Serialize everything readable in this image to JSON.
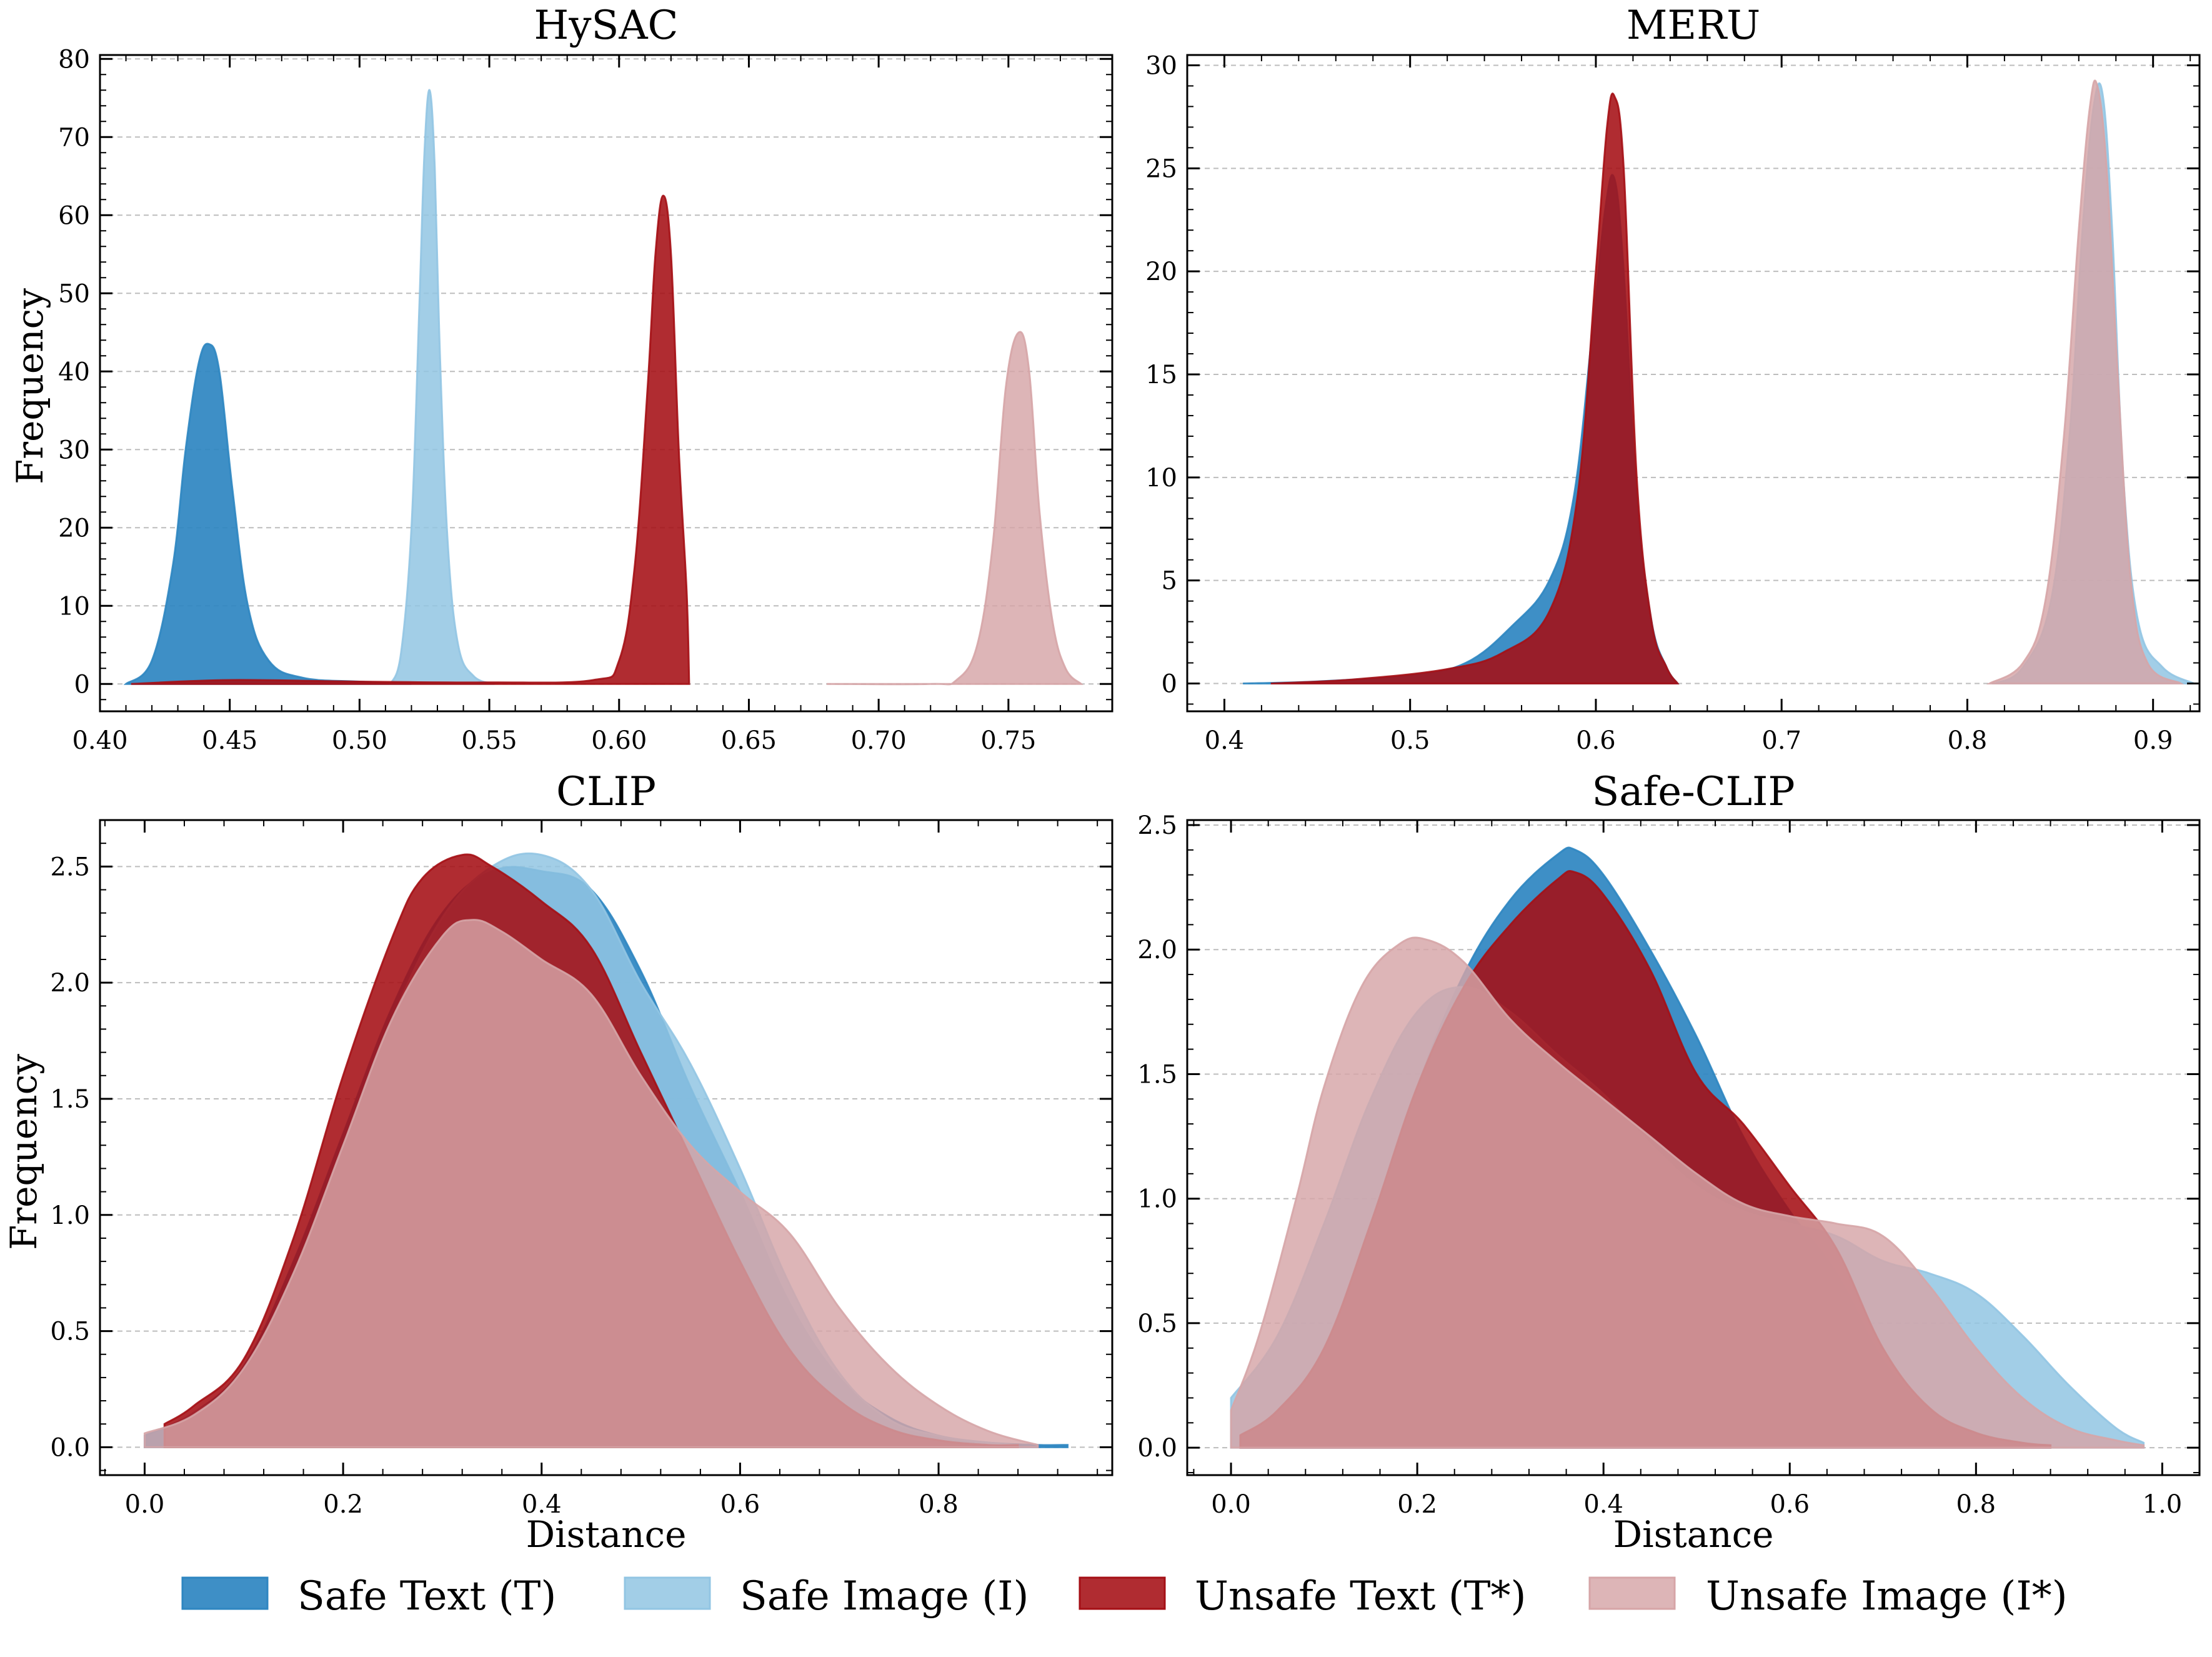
{
  "legend": {
    "position": "bottom-center",
    "items": [
      {
        "label": "Safe Text (T)",
        "color": "#2E86C1"
      },
      {
        "label": "Safe Image (I)",
        "color": "#92C5E3"
      },
      {
        "label": "Unsafe Text (T*)",
        "color": "#A50F15"
      },
      {
        "label": "Unsafe Image (I*)",
        "color": "#D6A5A7"
      }
    ]
  },
  "chart_data": [
    {
      "type": "area",
      "title": "HySAC",
      "xlabel": "",
      "ylabel": "Frequency",
      "xlim": [
        0.4,
        0.79
      ],
      "ylim": [
        -3.5,
        80.5
      ],
      "xticks": [
        0.4,
        0.45,
        0.5,
        0.55,
        0.6,
        0.65,
        0.7,
        0.75
      ],
      "xtick_labels": [
        "0.40",
        "0.45",
        "0.50",
        "0.55",
        "0.60",
        "0.65",
        "0.70",
        "0.75"
      ],
      "yticks": [
        0,
        10,
        20,
        30,
        40,
        50,
        60,
        70,
        80
      ],
      "ytick_labels": [
        "0",
        "10",
        "20",
        "30",
        "40",
        "50",
        "60",
        "70",
        "80"
      ],
      "grid": "horizontal-dashed",
      "series": [
        {
          "name": "Safe Text (T)",
          "x": [
            0.41,
            0.42,
            0.428,
            0.433,
            0.438,
            0.442,
            0.446,
            0.451,
            0.457,
            0.465,
            0.478,
            0.5,
            0.52
          ],
          "y": [
            0,
            3,
            15,
            30,
            41,
            43.5,
            40,
            25,
            10,
            3,
            0.8,
            0.3,
            0
          ]
        },
        {
          "name": "Safe Image (I)",
          "x": [
            0.512,
            0.516,
            0.52,
            0.523,
            0.525,
            0.527,
            0.529,
            0.531,
            0.534,
            0.538,
            0.544,
            0.552
          ],
          "y": [
            0,
            4,
            20,
            48,
            68,
            76,
            66,
            42,
            18,
            5,
            1,
            0
          ]
        },
        {
          "name": "Unsafe Text (T*)",
          "x": [
            0.412,
            0.45,
            0.5,
            0.55,
            0.59,
            0.6,
            0.606,
            0.611,
            0.614,
            0.617,
            0.62,
            0.623,
            0.626,
            0.627
          ],
          "y": [
            0,
            0.5,
            0.3,
            0.2,
            0.5,
            3,
            15,
            38,
            55,
            62.5,
            55,
            30,
            12,
            0
          ]
        },
        {
          "name": "Unsafe Image (I*)",
          "x": [
            0.68,
            0.72,
            0.73,
            0.738,
            0.744,
            0.749,
            0.754,
            0.758,
            0.762,
            0.767,
            0.772,
            0.778
          ],
          "y": [
            0,
            0,
            0.5,
            5,
            18,
            38,
            45,
            40,
            22,
            8,
            2,
            0
          ]
        }
      ]
    },
    {
      "type": "area",
      "title": "MERU",
      "xlabel": "",
      "ylabel": "",
      "xlim": [
        0.38,
        0.925
      ],
      "ylim": [
        -1.35,
        30.5
      ],
      "xticks": [
        0.4,
        0.5,
        0.6,
        0.7,
        0.8,
        0.9
      ],
      "xtick_labels": [
        "0.4",
        "0.5",
        "0.6",
        "0.7",
        "0.8",
        "0.9"
      ],
      "yticks": [
        0,
        5,
        10,
        15,
        20,
        25,
        30
      ],
      "ytick_labels": [
        "0",
        "5",
        "10",
        "15",
        "20",
        "25",
        "30"
      ],
      "grid": "horizontal-dashed",
      "series": [
        {
          "name": "Safe Text (T)",
          "x": [
            0.41,
            0.45,
            0.5,
            0.53,
            0.555,
            0.575,
            0.588,
            0.598,
            0.605,
            0.61,
            0.615,
            0.622,
            0.63,
            0.638,
            0.644
          ],
          "y": [
            0,
            0.1,
            0.4,
            1,
            2.8,
            5,
            9,
            17,
            23,
            24.5,
            20,
            9,
            3,
            0.8,
            0
          ]
        },
        {
          "name": "Safe Image (I)",
          "x": [
            0.815,
            0.83,
            0.845,
            0.855,
            0.862,
            0.868,
            0.873,
            0.878,
            0.884,
            0.892,
            0.905,
            0.922
          ],
          "y": [
            0,
            0.8,
            4,
            12,
            22,
            28,
            28.5,
            22,
            10,
            3,
            0.8,
            0
          ]
        },
        {
          "name": "Unsafe Text (T*)",
          "x": [
            0.425,
            0.47,
            0.52,
            0.55,
            0.575,
            0.59,
            0.6,
            0.606,
            0.61,
            0.615,
            0.622,
            0.63,
            0.638,
            0.644
          ],
          "y": [
            0,
            0.2,
            0.7,
            1.5,
            3.5,
            9,
            20,
            27,
            28.5,
            25,
            10,
            3,
            0.8,
            0
          ]
        },
        {
          "name": "Unsafe Image (I*)",
          "x": [
            0.812,
            0.83,
            0.842,
            0.852,
            0.86,
            0.866,
            0.87,
            0.875,
            0.881,
            0.888,
            0.897,
            0.915
          ],
          "y": [
            0,
            1,
            4,
            12,
            22,
            28,
            29,
            25,
            15,
            5,
            1,
            0
          ]
        }
      ]
    },
    {
      "type": "area",
      "title": "CLIP",
      "xlabel": "Distance",
      "ylabel": "Frequency",
      "xlim": [
        -0.045,
        0.975
      ],
      "ylim": [
        -0.12,
        2.7
      ],
      "xticks": [
        0.0,
        0.2,
        0.4,
        0.6,
        0.8
      ],
      "xtick_labels": [
        "0.0",
        "0.2",
        "0.4",
        "0.6",
        "0.8"
      ],
      "yticks": [
        0.0,
        0.5,
        1.0,
        1.5,
        2.0,
        2.5
      ],
      "ytick_labels": [
        "0.0",
        "0.5",
        "1.0",
        "1.5",
        "2.0",
        "2.5"
      ],
      "grid": "horizontal-dashed",
      "series": [
        {
          "name": "Safe Text (T)",
          "x": [
            0.0,
            0.05,
            0.1,
            0.15,
            0.2,
            0.25,
            0.3,
            0.35,
            0.4,
            0.45,
            0.5,
            0.55,
            0.6,
            0.65,
            0.7,
            0.75,
            0.8,
            0.85,
            0.9,
            0.93
          ],
          "y": [
            0.05,
            0.15,
            0.35,
            0.8,
            1.35,
            1.9,
            2.3,
            2.48,
            2.48,
            2.4,
            2.05,
            1.55,
            1.1,
            0.62,
            0.3,
            0.13,
            0.05,
            0.02,
            0.01,
            0.01
          ]
        },
        {
          "name": "Safe Image (I)",
          "x": [
            0.02,
            0.05,
            0.1,
            0.15,
            0.2,
            0.25,
            0.3,
            0.35,
            0.4,
            0.45,
            0.5,
            0.55,
            0.6,
            0.65,
            0.7,
            0.75,
            0.8,
            0.85,
            0.88
          ],
          "y": [
            0.08,
            0.15,
            0.32,
            0.75,
            1.3,
            1.85,
            2.28,
            2.5,
            2.55,
            2.4,
            2.0,
            1.65,
            1.2,
            0.7,
            0.32,
            0.12,
            0.05,
            0.02,
            0.01
          ]
        },
        {
          "name": "Unsafe Text (T*)",
          "x": [
            0.02,
            0.05,
            0.1,
            0.15,
            0.2,
            0.25,
            0.28,
            0.32,
            0.35,
            0.4,
            0.45,
            0.5,
            0.55,
            0.6,
            0.65,
            0.7,
            0.75,
            0.8,
            0.85,
            0.88
          ],
          "y": [
            0.1,
            0.18,
            0.38,
            0.9,
            1.6,
            2.2,
            2.45,
            2.55,
            2.5,
            2.35,
            2.15,
            1.7,
            1.25,
            0.8,
            0.42,
            0.2,
            0.08,
            0.03,
            0.01,
            0.01
          ]
        },
        {
          "name": "Unsafe Image (I*)",
          "x": [
            0.0,
            0.05,
            0.1,
            0.15,
            0.2,
            0.25,
            0.3,
            0.33,
            0.36,
            0.4,
            0.45,
            0.5,
            0.55,
            0.6,
            0.65,
            0.7,
            0.75,
            0.8,
            0.85,
            0.9
          ],
          "y": [
            0.06,
            0.14,
            0.34,
            0.75,
            1.3,
            1.85,
            2.2,
            2.27,
            2.22,
            2.1,
            1.95,
            1.6,
            1.3,
            1.1,
            0.92,
            0.6,
            0.35,
            0.18,
            0.07,
            0.01
          ]
        }
      ]
    },
    {
      "type": "area",
      "title": "Safe-CLIP",
      "xlabel": "Distance",
      "ylabel": "",
      "xlim": [
        -0.047,
        1.04
      ],
      "ylim": [
        -0.11,
        2.52
      ],
      "xticks": [
        0.0,
        0.2,
        0.4,
        0.6,
        0.8,
        1.0
      ],
      "xtick_labels": [
        "0.0",
        "0.2",
        "0.4",
        "0.6",
        "0.8",
        "1.0"
      ],
      "yticks": [
        0.0,
        0.5,
        1.0,
        1.5,
        2.0,
        2.5
      ],
      "ytick_labels": [
        "0.0",
        "0.5",
        "1.0",
        "1.5",
        "2.0",
        "2.5"
      ],
      "grid": "horizontal-dashed",
      "series": [
        {
          "name": "Safe Text (T)",
          "x": [
            0.01,
            0.05,
            0.1,
            0.15,
            0.2,
            0.25,
            0.3,
            0.35,
            0.37,
            0.4,
            0.45,
            0.5,
            0.55,
            0.6,
            0.65,
            0.7,
            0.75,
            0.8,
            0.85,
            0.88
          ],
          "y": [
            0.05,
            0.15,
            0.4,
            0.9,
            1.45,
            1.9,
            2.2,
            2.38,
            2.4,
            2.3,
            2.0,
            1.65,
            1.25,
            0.95,
            0.7,
            0.35,
            0.15,
            0.06,
            0.02,
            0.01
          ]
        },
        {
          "name": "Safe Image (I)",
          "x": [
            0.0,
            0.05,
            0.1,
            0.15,
            0.2,
            0.25,
            0.3,
            0.35,
            0.4,
            0.45,
            0.5,
            0.55,
            0.6,
            0.65,
            0.7,
            0.75,
            0.8,
            0.85,
            0.9,
            0.95,
            0.98
          ],
          "y": [
            0.2,
            0.45,
            0.9,
            1.4,
            1.75,
            1.85,
            1.75,
            1.58,
            1.42,
            1.22,
            1.05,
            0.95,
            0.9,
            0.85,
            0.75,
            0.7,
            0.62,
            0.45,
            0.25,
            0.08,
            0.02
          ]
        },
        {
          "name": "Unsafe Text (T*)",
          "x": [
            0.01,
            0.05,
            0.1,
            0.15,
            0.2,
            0.25,
            0.3,
            0.35,
            0.37,
            0.4,
            0.45,
            0.5,
            0.55,
            0.6,
            0.65,
            0.7,
            0.75,
            0.8,
            0.85,
            0.88
          ],
          "y": [
            0.05,
            0.15,
            0.4,
            0.9,
            1.45,
            1.85,
            2.1,
            2.28,
            2.31,
            2.22,
            1.92,
            1.5,
            1.3,
            1.05,
            0.8,
            0.4,
            0.16,
            0.06,
            0.02,
            0.01
          ]
        },
        {
          "name": "Unsafe Image (I*)",
          "x": [
            0.0,
            0.03,
            0.07,
            0.1,
            0.14,
            0.18,
            0.21,
            0.25,
            0.3,
            0.35,
            0.4,
            0.45,
            0.5,
            0.55,
            0.6,
            0.65,
            0.7,
            0.75,
            0.8,
            0.85,
            0.9,
            0.95,
            0.98
          ],
          "y": [
            0.15,
            0.45,
            1.0,
            1.45,
            1.85,
            2.02,
            2.04,
            1.95,
            1.72,
            1.55,
            1.4,
            1.25,
            1.1,
            0.98,
            0.93,
            0.9,
            0.85,
            0.65,
            0.4,
            0.2,
            0.08,
            0.03,
            0.01
          ]
        }
      ]
    }
  ]
}
